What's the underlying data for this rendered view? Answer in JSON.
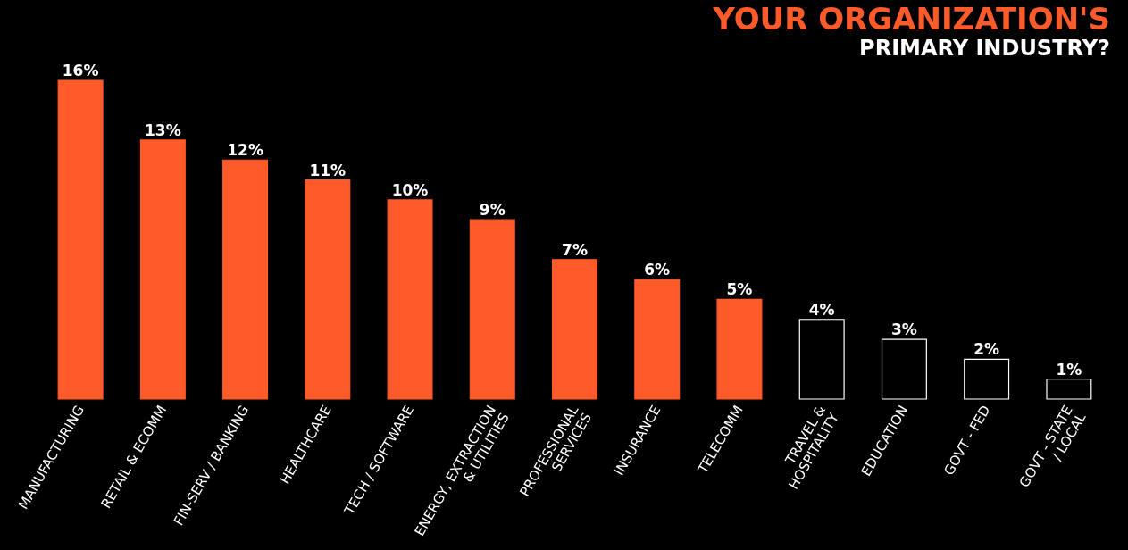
{
  "chart_data": {
    "type": "bar",
    "title": "YOUR ORGANIZATION'S",
    "subtitle": "PRIMARY INDUSTRY?",
    "categories": [
      "MANUFACTURING",
      "RETAIL & ECOMM",
      "FIN-SERV / BANKING",
      "HEALTHCARE",
      "TECH / SOFTWARE",
      "ENERGY, EXTRACTION & UTILITIES",
      "PROFESSIONAL SERVICES",
      "INSURANCE",
      "TELECOMM",
      "TRAVEL & HOSPITALITY",
      "EDUCATION",
      "GOVT - FED",
      "GOVT - STATE / LOCAL"
    ],
    "values": [
      16,
      13,
      12,
      11,
      10,
      9,
      7,
      6,
      5,
      4,
      3,
      2,
      1
    ],
    "value_labels": [
      "16%",
      "13%",
      "12%",
      "11%",
      "10%",
      "9%",
      "7%",
      "6%",
      "5%",
      "4%",
      "3%",
      "2%",
      "1%"
    ],
    "colors": [
      "#ff5a2a",
      "#ff5a2a",
      "#ff5a2a",
      "#ff5a2a",
      "#ff5a2a",
      "#ff5a2a",
      "#ff5a2a",
      "#ff5a2a",
      "#ff5a2a",
      "#000000",
      "#000000",
      "#000000",
      "#000000"
    ],
    "grid": false
  }
}
